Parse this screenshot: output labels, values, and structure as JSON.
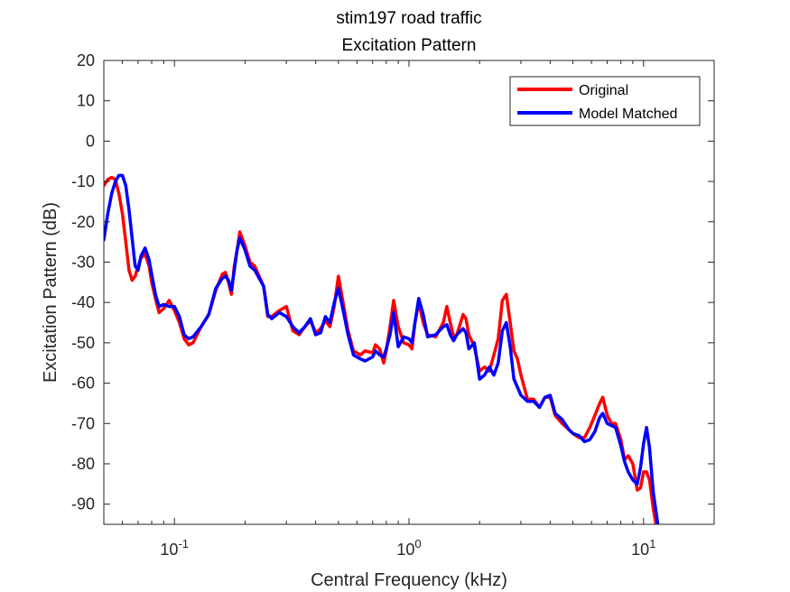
{
  "chart_data": {
    "type": "line",
    "title": "stim197 road traffic",
    "subtitle": "Excitation Pattern",
    "xlabel": "Central Frequency (kHz)",
    "ylabel": "Excitation Pattern (dB)",
    "xscale": "log",
    "xlim": [
      0.05,
      20
    ],
    "ylim": [
      -95,
      20
    ],
    "yticks": [
      20,
      10,
      0,
      -10,
      -20,
      -30,
      -40,
      -50,
      -60,
      -70,
      -80,
      -90
    ],
    "xticks": [
      {
        "value": 0.1,
        "base": "10",
        "exp": "-1"
      },
      {
        "value": 1,
        "base": "10",
        "exp": "0"
      },
      {
        "value": 10,
        "base": "10",
        "exp": "1"
      }
    ],
    "grid": false,
    "legend_position": "top-right",
    "series": [
      {
        "name": "Original",
        "color": "#ff0000",
        "points": [
          [
            0.05,
            -11
          ],
          [
            0.052,
            -9.5
          ],
          [
            0.054,
            -9
          ],
          [
            0.056,
            -9.5
          ],
          [
            0.058,
            -13
          ],
          [
            0.06,
            -18
          ],
          [
            0.062,
            -25
          ],
          [
            0.064,
            -32
          ],
          [
            0.066,
            -34.5
          ],
          [
            0.068,
            -33.5
          ],
          [
            0.07,
            -31
          ],
          [
            0.072,
            -29
          ],
          [
            0.075,
            -28
          ],
          [
            0.078,
            -31
          ],
          [
            0.08,
            -35
          ],
          [
            0.083,
            -39
          ],
          [
            0.086,
            -42.5
          ],
          [
            0.09,
            -41.5
          ],
          [
            0.095,
            -39.5
          ],
          [
            0.1,
            -42
          ],
          [
            0.105,
            -45
          ],
          [
            0.11,
            -49
          ],
          [
            0.115,
            -50.5
          ],
          [
            0.12,
            -50
          ],
          [
            0.13,
            -46
          ],
          [
            0.14,
            -43
          ],
          [
            0.15,
            -37
          ],
          [
            0.16,
            -33
          ],
          [
            0.165,
            -32.5
          ],
          [
            0.17,
            -35
          ],
          [
            0.175,
            -38
          ],
          [
            0.18,
            -31
          ],
          [
            0.185,
            -27
          ],
          [
            0.19,
            -22.5
          ],
          [
            0.2,
            -26
          ],
          [
            0.21,
            -30
          ],
          [
            0.22,
            -31
          ],
          [
            0.24,
            -36
          ],
          [
            0.25,
            -43.5
          ],
          [
            0.26,
            -43.5
          ],
          [
            0.28,
            -42
          ],
          [
            0.3,
            -41
          ],
          [
            0.32,
            -47
          ],
          [
            0.34,
            -48
          ],
          [
            0.36,
            -46
          ],
          [
            0.38,
            -44.5
          ],
          [
            0.4,
            -47.5
          ],
          [
            0.42,
            -46.5
          ],
          [
            0.44,
            -44.5
          ],
          [
            0.46,
            -46
          ],
          [
            0.48,
            -41
          ],
          [
            0.5,
            -33.5
          ],
          [
            0.52,
            -39
          ],
          [
            0.55,
            -47
          ],
          [
            0.58,
            -52
          ],
          [
            0.62,
            -53
          ],
          [
            0.65,
            -52
          ],
          [
            0.7,
            -52.5
          ],
          [
            0.72,
            -50.5
          ],
          [
            0.75,
            -51.5
          ],
          [
            0.78,
            -55
          ],
          [
            0.8,
            -52
          ],
          [
            0.83,
            -46
          ],
          [
            0.86,
            -39.5
          ],
          [
            0.9,
            -46
          ],
          [
            0.95,
            -50
          ],
          [
            1.0,
            -50.5
          ],
          [
            1.03,
            -51.5
          ],
          [
            1.06,
            -45
          ],
          [
            1.1,
            -40
          ],
          [
            1.15,
            -45
          ],
          [
            1.2,
            -48
          ],
          [
            1.3,
            -48.5
          ],
          [
            1.4,
            -45
          ],
          [
            1.45,
            -41
          ],
          [
            1.5,
            -45
          ],
          [
            1.55,
            -48.5
          ],
          [
            1.6,
            -48
          ],
          [
            1.7,
            -43
          ],
          [
            1.75,
            -44
          ],
          [
            1.8,
            -48
          ],
          [
            1.9,
            -51
          ],
          [
            2.0,
            -57
          ],
          [
            2.1,
            -56
          ],
          [
            2.2,
            -57
          ],
          [
            2.3,
            -53
          ],
          [
            2.4,
            -49
          ],
          [
            2.5,
            -39.5
          ],
          [
            2.6,
            -38
          ],
          [
            2.7,
            -45
          ],
          [
            2.8,
            -52
          ],
          [
            2.9,
            -54
          ],
          [
            3.0,
            -58
          ],
          [
            3.2,
            -64
          ],
          [
            3.4,
            -64
          ],
          [
            3.6,
            -66
          ],
          [
            3.8,
            -63.5
          ],
          [
            4.0,
            -63.5
          ],
          [
            4.2,
            -68
          ],
          [
            4.5,
            -70
          ],
          [
            4.8,
            -71.5
          ],
          [
            5.0,
            -72.5
          ],
          [
            5.3,
            -73.5
          ],
          [
            5.6,
            -73.5
          ],
          [
            5.9,
            -71
          ],
          [
            6.2,
            -68
          ],
          [
            6.5,
            -65
          ],
          [
            6.7,
            -63.5
          ],
          [
            7.0,
            -68
          ],
          [
            7.3,
            -70
          ],
          [
            7.6,
            -70
          ],
          [
            8.0,
            -74
          ],
          [
            8.3,
            -79
          ],
          [
            8.6,
            -78
          ],
          [
            9.0,
            -80
          ],
          [
            9.4,
            -86.5
          ],
          [
            9.7,
            -86
          ],
          [
            10.0,
            -82
          ],
          [
            10.3,
            -82
          ],
          [
            10.6,
            -84
          ],
          [
            11.0,
            -91
          ],
          [
            11.3,
            -95
          ]
        ]
      },
      {
        "name": "Model Matched",
        "color": "#0000ff",
        "points": [
          [
            0.05,
            -24.5
          ],
          [
            0.052,
            -18
          ],
          [
            0.054,
            -13
          ],
          [
            0.056,
            -10
          ],
          [
            0.058,
            -8.5
          ],
          [
            0.06,
            -8.5
          ],
          [
            0.062,
            -11
          ],
          [
            0.064,
            -17
          ],
          [
            0.066,
            -24
          ],
          [
            0.068,
            -31
          ],
          [
            0.07,
            -32
          ],
          [
            0.072,
            -28.5
          ],
          [
            0.075,
            -26.5
          ],
          [
            0.078,
            -29.5
          ],
          [
            0.08,
            -33
          ],
          [
            0.083,
            -38
          ],
          [
            0.086,
            -41
          ],
          [
            0.09,
            -40.5
          ],
          [
            0.095,
            -41
          ],
          [
            0.1,
            -41
          ],
          [
            0.105,
            -43.5
          ],
          [
            0.11,
            -48
          ],
          [
            0.115,
            -49
          ],
          [
            0.12,
            -48.5
          ],
          [
            0.13,
            -46
          ],
          [
            0.14,
            -43
          ],
          [
            0.15,
            -36.5
          ],
          [
            0.16,
            -34
          ],
          [
            0.165,
            -33.5
          ],
          [
            0.17,
            -34.5
          ],
          [
            0.175,
            -37
          ],
          [
            0.18,
            -32
          ],
          [
            0.185,
            -27
          ],
          [
            0.19,
            -24
          ],
          [
            0.2,
            -27
          ],
          [
            0.21,
            -31
          ],
          [
            0.22,
            -32
          ],
          [
            0.24,
            -36
          ],
          [
            0.25,
            -43
          ],
          [
            0.26,
            -44
          ],
          [
            0.28,
            -42.5
          ],
          [
            0.3,
            -43.5
          ],
          [
            0.32,
            -46
          ],
          [
            0.34,
            -47.5
          ],
          [
            0.36,
            -46
          ],
          [
            0.38,
            -44
          ],
          [
            0.4,
            -48
          ],
          [
            0.42,
            -47.5
          ],
          [
            0.44,
            -43.5
          ],
          [
            0.46,
            -45
          ],
          [
            0.48,
            -40
          ],
          [
            0.5,
            -36.5
          ],
          [
            0.52,
            -41
          ],
          [
            0.55,
            -48
          ],
          [
            0.58,
            -53
          ],
          [
            0.62,
            -54
          ],
          [
            0.65,
            -54.5
          ],
          [
            0.7,
            -53.5
          ],
          [
            0.72,
            -52
          ],
          [
            0.75,
            -53
          ],
          [
            0.78,
            -53.5
          ],
          [
            0.8,
            -51.5
          ],
          [
            0.83,
            -48
          ],
          [
            0.86,
            -42.5
          ],
          [
            0.9,
            -51
          ],
          [
            0.95,
            -48.5
          ],
          [
            1.0,
            -49
          ],
          [
            1.03,
            -50
          ],
          [
            1.06,
            -45
          ],
          [
            1.1,
            -39
          ],
          [
            1.15,
            -43
          ],
          [
            1.2,
            -48.5
          ],
          [
            1.3,
            -48
          ],
          [
            1.4,
            -46
          ],
          [
            1.45,
            -45.5
          ],
          [
            1.5,
            -48
          ],
          [
            1.55,
            -49.5
          ],
          [
            1.6,
            -48
          ],
          [
            1.7,
            -46.5
          ],
          [
            1.75,
            -47.5
          ],
          [
            1.8,
            -51.5
          ],
          [
            1.9,
            -50
          ],
          [
            2.0,
            -59
          ],
          [
            2.1,
            -58
          ],
          [
            2.2,
            -56
          ],
          [
            2.3,
            -58
          ],
          [
            2.4,
            -55
          ],
          [
            2.5,
            -47
          ],
          [
            2.6,
            -45
          ],
          [
            2.7,
            -51
          ],
          [
            2.8,
            -59
          ],
          [
            2.9,
            -61
          ],
          [
            3.0,
            -63
          ],
          [
            3.2,
            -64.5
          ],
          [
            3.4,
            -64.5
          ],
          [
            3.6,
            -66
          ],
          [
            3.8,
            -63.5
          ],
          [
            4.0,
            -63
          ],
          [
            4.2,
            -67.5
          ],
          [
            4.5,
            -69
          ],
          [
            4.8,
            -71.5
          ],
          [
            5.0,
            -72.5
          ],
          [
            5.3,
            -73
          ],
          [
            5.6,
            -74.5
          ],
          [
            5.9,
            -74
          ],
          [
            6.2,
            -72
          ],
          [
            6.5,
            -68.5
          ],
          [
            6.7,
            -67.5
          ],
          [
            7.0,
            -70
          ],
          [
            7.3,
            -70.5
          ],
          [
            7.6,
            -71
          ],
          [
            8.0,
            -75.5
          ],
          [
            8.3,
            -79.5
          ],
          [
            8.6,
            -82
          ],
          [
            9.0,
            -84
          ],
          [
            9.4,
            -85
          ],
          [
            9.7,
            -81
          ],
          [
            10.0,
            -75
          ],
          [
            10.3,
            -71
          ],
          [
            10.6,
            -76
          ],
          [
            11.0,
            -87
          ],
          [
            11.5,
            -95
          ]
        ]
      }
    ]
  }
}
